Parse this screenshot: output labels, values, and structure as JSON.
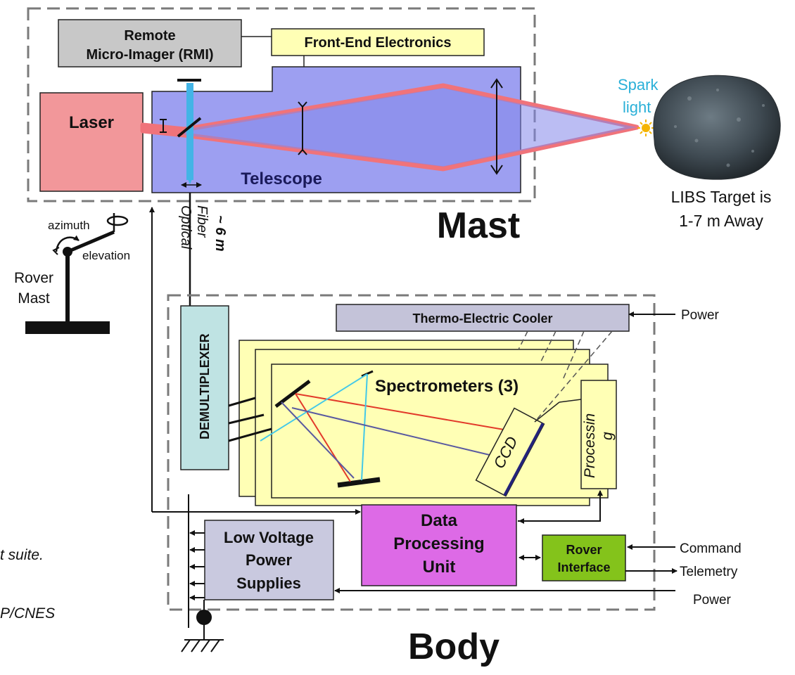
{
  "colors": {
    "laser": "#f2979a",
    "telescope": "#9d9ff1",
    "rmi_box": "#c8c8c8",
    "fee_box": "#ffffb5",
    "tec_box": "#c4c3d9",
    "spectrometer": "#ffffb5",
    "demux": "#bfe3e3",
    "dpu": "#dd6ae6",
    "rover_interface": "#84c31b",
    "lvps": "#c9c9df",
    "beam_red": "#f0737a",
    "beam_blue": "#43b4e6",
    "spark_text": "#2ab0d8"
  },
  "mast": {
    "title": "Mast",
    "rmi_line1": "Remote",
    "rmi_line2": "Micro-Imager (RMI)",
    "fee": "Front-End Electronics",
    "laser": "Laser",
    "telescope": "Telescope",
    "spark_line1": "Spark",
    "spark_line2": "light",
    "target_line1": "LIBS Target is",
    "target_line2": "1-7 m Away"
  },
  "fiber": {
    "line1": "Optical",
    "line2": "Fiber",
    "line3": "~ 6 m"
  },
  "rover_mast": {
    "azimuth": "azimuth",
    "elevation": "elevation",
    "label_line1": "Rover",
    "label_line2": "Mast"
  },
  "body": {
    "title": "Body",
    "tec": "Thermo-Electric Cooler",
    "demux": "DEMULTIPLEXER",
    "spectrometers": "Spectrometers (3)",
    "ccd": "CCD",
    "processing_a": "Processin",
    "processing_b": "g",
    "dpu_line1": "Data",
    "dpu_line2": "Processing",
    "dpu_line3": "Unit",
    "ri_line1": "Rover",
    "ri_line2": "Interface",
    "lvps_line1": "Low Voltage",
    "lvps_line2": "Power",
    "lvps_line3": "Supplies"
  },
  "external": {
    "power_top": "Power",
    "command": "Command",
    "telemetry": "Telemetry",
    "power_bottom": "Power"
  },
  "caption": {
    "line1": "t suite.",
    "line2": "P/CNES"
  }
}
